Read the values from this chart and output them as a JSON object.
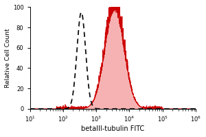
{
  "title": "",
  "xlabel": "betaIII-tubulin FITC",
  "ylabel": "Relative Cell Count",
  "background_color": "#ffffff",
  "isotype_color": "#111111",
  "antibody_color": "#cc0000",
  "antibody_fill": "#f5aaaa",
  "xlim_log": [
    1,
    6
  ],
  "ylim": [
    0,
    100
  ],
  "yticks": [
    0,
    20,
    40,
    60,
    80,
    100
  ],
  "isotype_peak_log": 2.55,
  "antibody_peak_log": 3.55,
  "isotype_sigma_log": 0.13,
  "antibody_sigma_log": 0.28,
  "isotype_height": 95,
  "antibody_height": 100,
  "xlabel_fontsize": 7,
  "ylabel_fontsize": 6.5,
  "tick_fontsize": 6
}
